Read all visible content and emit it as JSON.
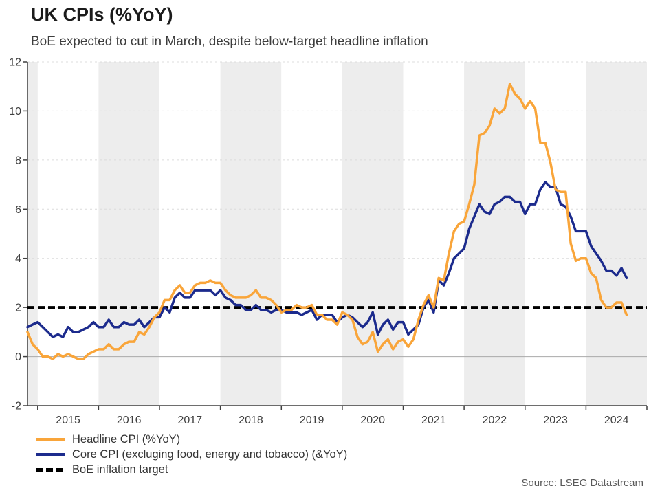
{
  "header": {
    "title": "UK CPIs (%YoY)",
    "subtitle": "BoE expected to cut in March, despite below-target headline inflation"
  },
  "source": "Source: LSEG Datastream",
  "colors": {
    "headline": "#F9A53A",
    "core": "#1C2B8D",
    "target": "#000000",
    "band": "#EDEDED",
    "gridline": "#DCDCDC",
    "zero_line": "#A9A9A9",
    "axis": "#3F3F3F",
    "tick_label": "#3F3F3F"
  },
  "legend": [
    {
      "label": "Headline CPI (%YoY)",
      "color": "#F9A53A",
      "style": "solid"
    },
    {
      "label": "Core CPI (excluging food, energy and tobacco) (&YoY)",
      "color": "#1C2B8D",
      "style": "solid"
    },
    {
      "label": "BoE inflation target",
      "color": "#000000",
      "style": "dashed"
    }
  ],
  "chart_data": {
    "type": "line",
    "title": "UK CPIs (%YoY)",
    "subtitle": "BoE expected to cut in March, despite below-target headline inflation",
    "frequency": "monthly",
    "x_start": "2014-11",
    "x_end": "2024-09",
    "ylim": [
      -2,
      12
    ],
    "y_ticks": [
      -2,
      0,
      2,
      4,
      6,
      8,
      10,
      12
    ],
    "x_tick_years": [
      2015,
      2016,
      2017,
      2018,
      2019,
      2020,
      2021,
      2022,
      2023,
      2024,
      2025
    ],
    "x_labels": [
      "2015",
      "2016",
      "2017",
      "2018",
      "2019",
      "2020",
      "2021",
      "2022",
      "2023",
      "2024"
    ],
    "shaded_years": [
      2014,
      2016,
      2018,
      2020,
      2022,
      2024
    ],
    "grid": "horizontal-dashed",
    "legend_position": "bottom-left",
    "target": {
      "label": "BoE inflation target",
      "value": 2
    },
    "series": [
      {
        "name": "Headline CPI (%YoY)",
        "color": "#F9A53A",
        "values": [
          1.0,
          0.5,
          0.3,
          0.0,
          0.0,
          -0.1,
          0.1,
          0.0,
          0.1,
          0.0,
          -0.1,
          -0.1,
          0.1,
          0.2,
          0.3,
          0.3,
          0.5,
          0.3,
          0.3,
          0.5,
          0.6,
          0.6,
          1.0,
          0.9,
          1.2,
          1.6,
          1.8,
          2.3,
          2.3,
          2.7,
          2.9,
          2.6,
          2.6,
          2.9,
          3.0,
          3.0,
          3.1,
          3.0,
          3.0,
          2.7,
          2.5,
          2.4,
          2.4,
          2.4,
          2.5,
          2.7,
          2.4,
          2.4,
          2.3,
          2.1,
          1.8,
          1.9,
          1.9,
          2.1,
          2.0,
          2.0,
          2.1,
          1.7,
          1.7,
          1.5,
          1.5,
          1.3,
          1.8,
          1.7,
          1.5,
          0.8,
          0.5,
          0.6,
          1.0,
          0.2,
          0.5,
          0.7,
          0.3,
          0.6,
          0.7,
          0.4,
          0.7,
          1.5,
          2.1,
          2.5,
          2.0,
          3.2,
          3.1,
          4.2,
          5.1,
          5.4,
          5.5,
          6.2,
          7.0,
          9.0,
          9.1,
          9.4,
          10.1,
          9.9,
          10.1,
          11.1,
          10.7,
          10.5,
          10.1,
          10.4,
          10.1,
          8.7,
          8.7,
          7.9,
          6.8,
          6.7,
          6.7,
          4.6,
          3.9,
          4.0,
          4.0,
          3.4,
          3.2,
          2.3,
          2.0,
          2.0,
          2.2,
          2.2,
          1.7
        ]
      },
      {
        "name": "Core CPI (excluging food, energy and tobacco) (&YoY)",
        "color": "#1C2B8D",
        "values": [
          1.2,
          1.3,
          1.4,
          1.2,
          1.0,
          0.8,
          0.9,
          0.8,
          1.2,
          1.0,
          1.0,
          1.1,
          1.2,
          1.4,
          1.2,
          1.2,
          1.5,
          1.2,
          1.2,
          1.4,
          1.3,
          1.3,
          1.5,
          1.2,
          1.4,
          1.6,
          1.6,
          2.0,
          1.8,
          2.4,
          2.6,
          2.4,
          2.4,
          2.7,
          2.7,
          2.7,
          2.7,
          2.5,
          2.7,
          2.4,
          2.3,
          2.1,
          2.1,
          1.9,
          1.9,
          2.1,
          1.9,
          1.9,
          1.8,
          1.9,
          1.9,
          1.8,
          1.8,
          1.8,
          1.7,
          1.8,
          1.9,
          1.5,
          1.7,
          1.7,
          1.7,
          1.4,
          1.6,
          1.7,
          1.6,
          1.4,
          1.2,
          1.4,
          1.8,
          0.9,
          1.3,
          1.5,
          1.1,
          1.4,
          1.4,
          0.9,
          1.1,
          1.3,
          2.0,
          2.3,
          1.8,
          3.1,
          2.9,
          3.4,
          4.0,
          4.2,
          4.4,
          5.2,
          5.7,
          6.2,
          5.9,
          5.8,
          6.2,
          6.3,
          6.5,
          6.5,
          6.3,
          6.3,
          5.8,
          6.2,
          6.2,
          6.8,
          7.1,
          6.9,
          6.9,
          6.2,
          6.1,
          5.7,
          5.1,
          5.1,
          5.1,
          4.5,
          4.2,
          3.9,
          3.5,
          3.5,
          3.3,
          3.6,
          3.2
        ]
      }
    ]
  }
}
